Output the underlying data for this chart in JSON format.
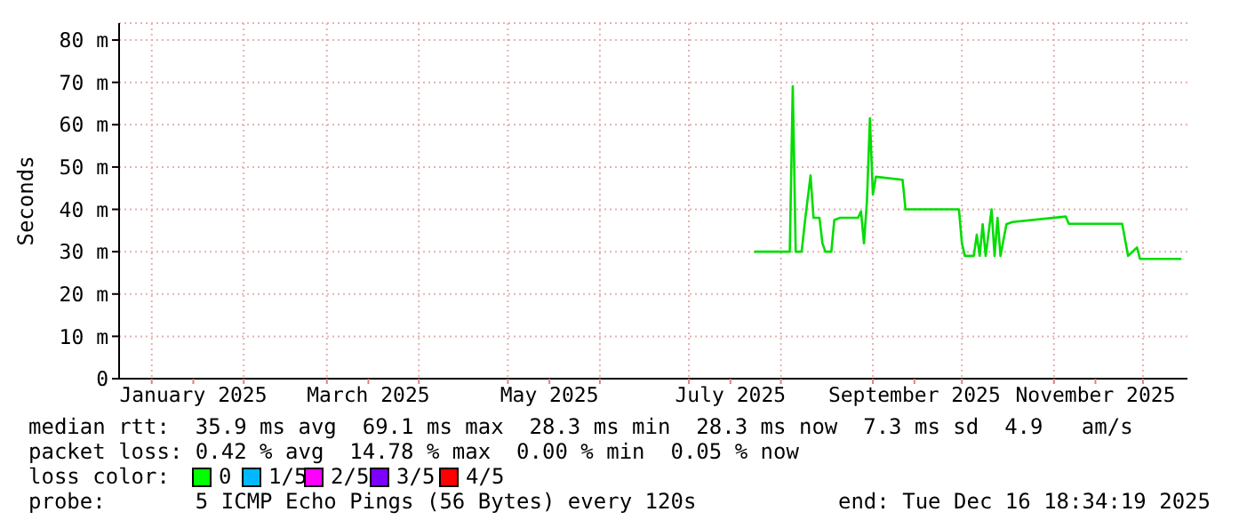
{
  "chart_data": {
    "type": "line",
    "ylabel": "Seconds",
    "xlim": [
      "2024-12-21",
      "2025-12-16"
    ],
    "xticks": [
      {
        "value": "2025-01-01",
        "label": null
      },
      {
        "value": "2025-01-15",
        "label": "January 2025"
      },
      {
        "value": "2025-02-01",
        "label": null
      },
      {
        "value": "2025-03-01",
        "label": null
      },
      {
        "value": "2025-03-15",
        "label": "March 2025"
      },
      {
        "value": "2025-04-01",
        "label": null
      },
      {
        "value": "2025-05-01",
        "label": null
      },
      {
        "value": "2025-05-15",
        "label": "May 2025"
      },
      {
        "value": "2025-06-01",
        "label": null
      },
      {
        "value": "2025-07-01",
        "label": null
      },
      {
        "value": "2025-07-15",
        "label": "July 2025"
      },
      {
        "value": "2025-08-01",
        "label": null
      },
      {
        "value": "2025-09-01",
        "label": null
      },
      {
        "value": "2025-09-15",
        "label": "September 2025"
      },
      {
        "value": "2025-10-01",
        "label": null
      },
      {
        "value": "2025-11-01",
        "label": null
      },
      {
        "value": "2025-11-15",
        "label": "November 2025"
      },
      {
        "value": "2025-12-01",
        "label": null
      }
    ],
    "ylim": [
      0,
      84
    ],
    "yticks": [
      0,
      {
        "value": 10,
        "label": "10 m"
      },
      {
        "value": 20,
        "label": "20 m"
      },
      {
        "value": 30,
        "label": "30 m"
      },
      {
        "value": 40,
        "label": "40 m"
      },
      {
        "value": 50,
        "label": "50 m"
      },
      {
        "value": 60,
        "label": "60 m"
      },
      {
        "value": 70,
        "label": "70 m"
      },
      {
        "value": 80,
        "label": "80 m"
      }
    ],
    "grid": true,
    "legend": false,
    "marker": "none",
    "line_style": "solid",
    "x": [
      "2025-07-23",
      "2025-08-04",
      "2025-08-05",
      "2025-08-06",
      "2025-08-08",
      "2025-08-09",
      "2025-08-11",
      "2025-08-12",
      "2025-08-14",
      "2025-08-15",
      "2025-08-16",
      "2025-08-18",
      "2025-08-19",
      "2025-08-21",
      "2025-08-27",
      "2025-08-28",
      "2025-08-29",
      "2025-08-30",
      "2025-08-31",
      "2025-09-01",
      "2025-09-02",
      "2025-09-11",
      "2025-09-12",
      "2025-09-30",
      "2025-10-01",
      "2025-10-02",
      "2025-10-05",
      "2025-10-06",
      "2025-10-07",
      "2025-10-08",
      "2025-10-09",
      "2025-10-11",
      "2025-10-12",
      "2025-10-13",
      "2025-10-14",
      "2025-10-16",
      "2025-10-18",
      "2025-11-05",
      "2025-11-06",
      "2025-11-24",
      "2025-11-26",
      "2025-11-29",
      "2025-11-30",
      "2025-12-14"
    ],
    "series": [
      {
        "color": "#00dd00",
        "values": [
          30,
          30,
          69.1,
          30,
          30,
          36.5,
          48,
          38,
          38,
          32,
          30,
          30,
          37.5,
          38,
          38,
          39.5,
          32,
          42,
          61.5,
          43.5,
          47.7,
          47,
          40,
          40,
          32,
          29,
          29,
          34,
          29,
          36.5,
          29,
          40,
          29,
          38,
          29,
          36.5,
          37,
          38.3,
          36.6,
          36.6,
          29,
          31,
          28.3,
          28.3
        ]
      }
    ],
    "annotations": [
      "median rtt:  35.9 ms avg  69.1 ms max  28.3 ms min  28.3 ms now  7.3 ms sd  4.9   am/s",
      "packet loss: 0.42 % avg  14.78 % max  0.00 % min  0.05 % now",
      "loss color:",
      "0",
      "1/5",
      "2/5",
      "3/5",
      "4/5",
      "probe:       5 ICMP Echo Pings (56 Bytes) every 120s",
      "end: Tue Dec 16 18:34:19 2025"
    ]
  }
}
